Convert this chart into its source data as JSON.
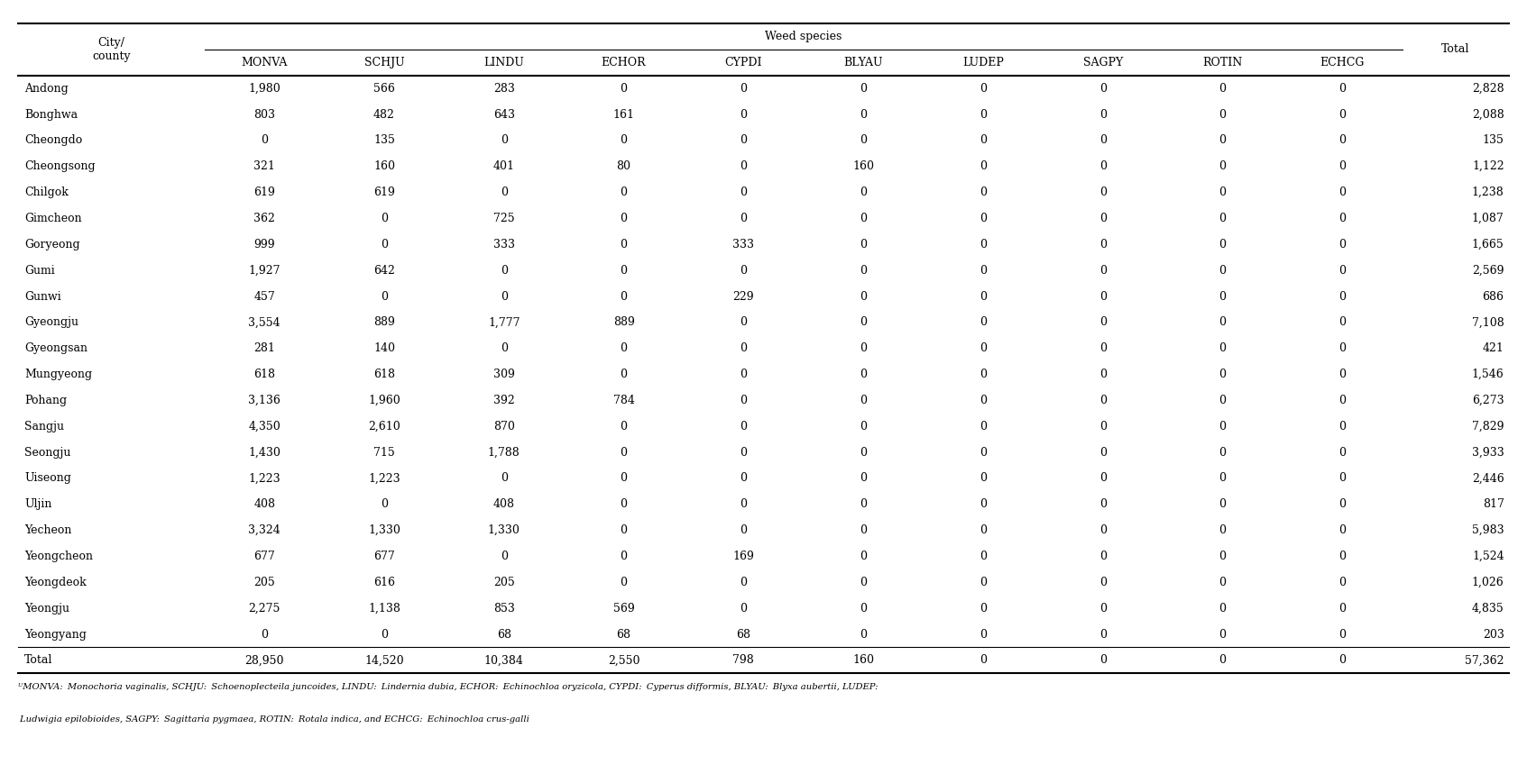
{
  "header_city": "City/\ncounty",
  "header_weed": "Weed species",
  "header_total": "Total",
  "header_row2": [
    "MONVA",
    "SCHJU",
    "LINDU",
    "ECHOR",
    "CYPDI",
    "BLYAU",
    "LUDEP",
    "SAGPY",
    "ROTIN",
    "ECHCG"
  ],
  "rows": [
    [
      "Andong",
      "1,980",
      "566",
      "283",
      "0",
      "0",
      "0",
      "0",
      "0",
      "0",
      "0",
      "2,828"
    ],
    [
      "Bonghwa",
      "803",
      "482",
      "643",
      "161",
      "0",
      "0",
      "0",
      "0",
      "0",
      "0",
      "2,088"
    ],
    [
      "Cheongdo",
      "0",
      "135",
      "0",
      "0",
      "0",
      "0",
      "0",
      "0",
      "0",
      "0",
      "135"
    ],
    [
      "Cheongsong",
      "321",
      "160",
      "401",
      "80",
      "0",
      "160",
      "0",
      "0",
      "0",
      "0",
      "1,122"
    ],
    [
      "Chilgok",
      "619",
      "619",
      "0",
      "0",
      "0",
      "0",
      "0",
      "0",
      "0",
      "0",
      "1,238"
    ],
    [
      "Gimcheon",
      "362",
      "0",
      "725",
      "0",
      "0",
      "0",
      "0",
      "0",
      "0",
      "0",
      "1,087"
    ],
    [
      "Goryeong",
      "999",
      "0",
      "333",
      "0",
      "333",
      "0",
      "0",
      "0",
      "0",
      "0",
      "1,665"
    ],
    [
      "Gumi",
      "1,927",
      "642",
      "0",
      "0",
      "0",
      "0",
      "0",
      "0",
      "0",
      "0",
      "2,569"
    ],
    [
      "Gunwi",
      "457",
      "0",
      "0",
      "0",
      "229",
      "0",
      "0",
      "0",
      "0",
      "0",
      "686"
    ],
    [
      "Gyeongju",
      "3,554",
      "889",
      "1,777",
      "889",
      "0",
      "0",
      "0",
      "0",
      "0",
      "0",
      "7,108"
    ],
    [
      "Gyeongsan",
      "281",
      "140",
      "0",
      "0",
      "0",
      "0",
      "0",
      "0",
      "0",
      "0",
      "421"
    ],
    [
      "Mungyeong",
      "618",
      "618",
      "309",
      "0",
      "0",
      "0",
      "0",
      "0",
      "0",
      "0",
      "1,546"
    ],
    [
      "Pohang",
      "3,136",
      "1,960",
      "392",
      "784",
      "0",
      "0",
      "0",
      "0",
      "0",
      "0",
      "6,273"
    ],
    [
      "Sangju",
      "4,350",
      "2,610",
      "870",
      "0",
      "0",
      "0",
      "0",
      "0",
      "0",
      "0",
      "7,829"
    ],
    [
      "Seongju",
      "1,430",
      "715",
      "1,788",
      "0",
      "0",
      "0",
      "0",
      "0",
      "0",
      "0",
      "3,933"
    ],
    [
      "Uiseong",
      "1,223",
      "1,223",
      "0",
      "0",
      "0",
      "0",
      "0",
      "0",
      "0",
      "0",
      "2,446"
    ],
    [
      "Uljin",
      "408",
      "0",
      "408",
      "0",
      "0",
      "0",
      "0",
      "0",
      "0",
      "0",
      "817"
    ],
    [
      "Yecheon",
      "3,324",
      "1,330",
      "1,330",
      "0",
      "0",
      "0",
      "0",
      "0",
      "0",
      "0",
      "5,983"
    ],
    [
      "Yeongcheon",
      "677",
      "677",
      "0",
      "0",
      "169",
      "0",
      "0",
      "0",
      "0",
      "0",
      "1,524"
    ],
    [
      "Yeongdeok",
      "205",
      "616",
      "205",
      "0",
      "0",
      "0",
      "0",
      "0",
      "0",
      "0",
      "1,026"
    ],
    [
      "Yeongju",
      "2,275",
      "1,138",
      "853",
      "569",
      "0",
      "0",
      "0",
      "0",
      "0",
      "0",
      "4,835"
    ],
    [
      "Yeongyang",
      "0",
      "0",
      "68",
      "68",
      "68",
      "0",
      "0",
      "0",
      "0",
      "0",
      "203"
    ]
  ],
  "total_row": [
    "Total",
    "28,950",
    "14,520",
    "10,384",
    "2,550",
    "798",
    "160",
    "0",
    "0",
    "0",
    "0",
    "57,362"
  ],
  "footnote_line1_normal": "MONVA: ",
  "footnote_line1": "aMONVA: Monochoria vaginalis, SCHJU: Schoenoplecteila juncoides, LINDU: Lindernia dubia, ECHOR: Echinochloa oryzicola, CYPDI: Cyperus difformis, BLYAU: Blyxa aubertii, LUDEP:",
  "footnote_line2": "Ludwigia epilobioides, SAGPY: Sagittaria pygmaea, ROTIN: Rotala indica, and ECHCG: Echinochloa crus-galli",
  "col_widths_rel": [
    1.4,
    0.9,
    0.9,
    0.9,
    0.9,
    0.9,
    0.9,
    0.9,
    0.9,
    0.9,
    0.9,
    0.8
  ],
  "bg_color": "#ffffff",
  "text_color": "#000000",
  "line_color": "#000000",
  "thick_lw": 1.5,
  "thin_lw": 0.8,
  "header_fs": 9,
  "data_fs": 9,
  "footnote_fs": 7.2
}
